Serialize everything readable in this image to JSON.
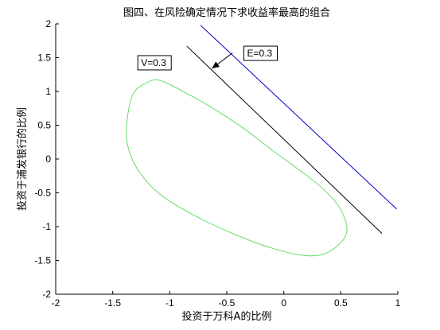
{
  "chart_data": {
    "type": "line",
    "title": "图四、在风险确定情况下求收益率最高的组合",
    "xlabel": "投资于万科A的比例",
    "ylabel": "投资于浦发银行的比例",
    "xlim": [
      -2,
      1
    ],
    "ylim": [
      -2,
      2
    ],
    "xticks": [
      -2,
      -1.5,
      -1,
      -0.5,
      0,
      0.5,
      1
    ],
    "yticks": [
      -2,
      -1.5,
      -1,
      -0.5,
      0,
      0.5,
      1,
      1.5,
      2
    ],
    "xtick_labels": [
      "-2",
      "-1.5",
      "-1",
      "-0.5",
      "0",
      "0.5",
      "1"
    ],
    "ytick_labels": [
      "-2",
      "-1.5",
      "-1",
      "-0.5",
      "0",
      "0.5",
      "1",
      "1.5",
      "2"
    ],
    "grid": false,
    "series": [
      {
        "kind": "ellipse",
        "color": "#66dd66",
        "points": [
          [
            -1.33,
            0.93
          ],
          [
            -1.2,
            1.13
          ],
          [
            -1.08,
            1.16
          ],
          [
            -0.85,
            0.97
          ],
          [
            -0.6,
            0.73
          ],
          [
            -0.35,
            0.45
          ],
          [
            -0.1,
            0.13
          ],
          [
            0.15,
            -0.18
          ],
          [
            0.35,
            -0.45
          ],
          [
            0.5,
            -0.75
          ],
          [
            0.55,
            -1.1
          ],
          [
            0.4,
            -1.37
          ],
          [
            0.2,
            -1.43
          ],
          [
            -0.1,
            -1.32
          ],
          [
            -0.45,
            -1.1
          ],
          [
            -0.8,
            -0.82
          ],
          [
            -1.1,
            -0.5
          ],
          [
            -1.3,
            -0.1
          ],
          [
            -1.38,
            0.35
          ],
          [
            -1.33,
            0.93
          ]
        ]
      },
      {
        "kind": "line",
        "color": "#000000",
        "points": [
          [
            -0.85,
            1.67
          ],
          [
            0.86,
            -1.1
          ]
        ]
      },
      {
        "kind": "line",
        "color": "#0000cc",
        "points": [
          [
            -0.73,
            1.98
          ],
          [
            0.99,
            -0.74
          ]
        ]
      }
    ],
    "annotations": [
      {
        "text": "V=0.3",
        "anchor": [
          -1.28,
          1.33
        ]
      },
      {
        "text": "E=0.3",
        "anchor": [
          -0.35,
          1.47
        ]
      }
    ],
    "arrow": {
      "from": [
        -0.45,
        1.57
      ],
      "to": [
        -0.63,
        1.34
      ]
    }
  }
}
